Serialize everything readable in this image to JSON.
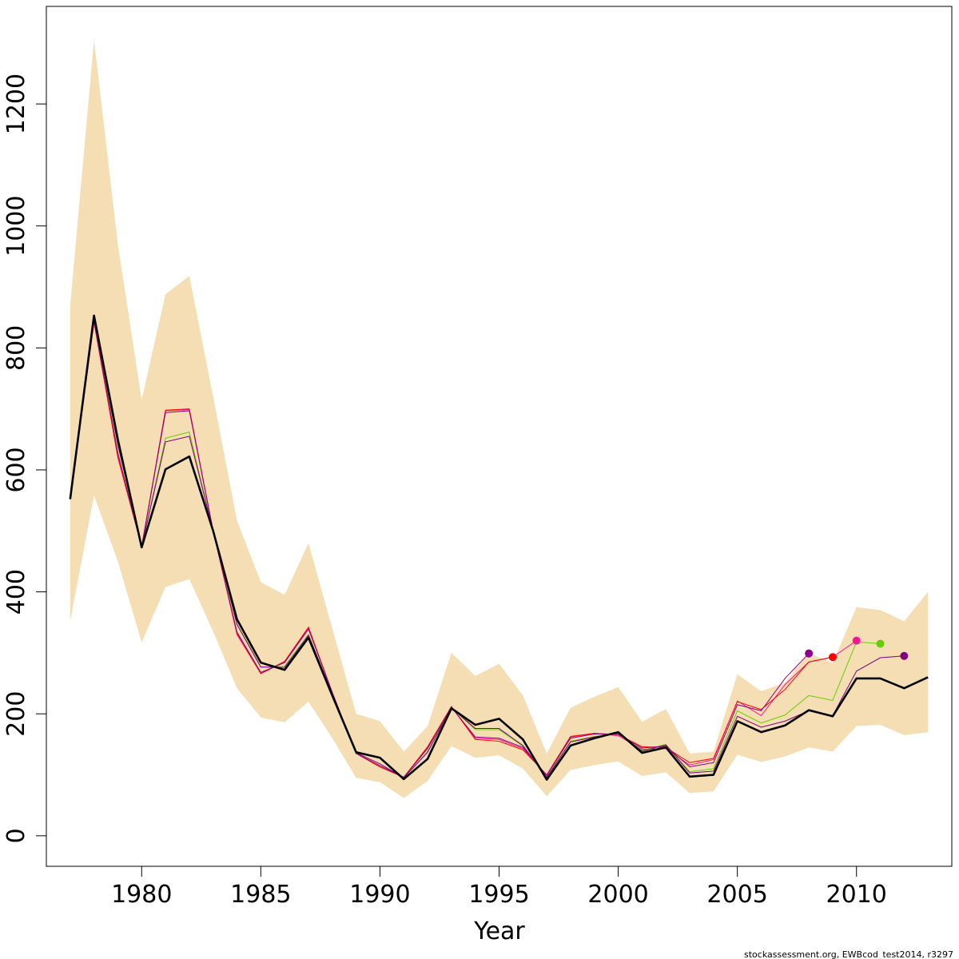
{
  "chart_data": {
    "type": "line",
    "xlabel": "Year",
    "ylabel": "",
    "xlim": [
      1976,
      2014
    ],
    "ylim": [
      -50,
      1360
    ],
    "x_ticks": [
      "1980",
      "1985",
      "1990",
      "1995",
      "2000",
      "2005",
      "2010"
    ],
    "y_ticks": [
      "0",
      "200",
      "400",
      "600",
      "800",
      "1000",
      "1200"
    ],
    "grid": false,
    "legend": "none",
    "footer": "stockassessment.org, EWBcod_test2014, r3297",
    "colors": {
      "band": "#f5deb3",
      "main": "#000000",
      "r1": "#ff1493",
      "r2": "#ff0000",
      "r3": "#66cd00",
      "r4": "#800080",
      "r5": "#8b008b"
    },
    "x": [
      1977,
      1978,
      1979,
      1980,
      1981,
      1982,
      1983,
      1984,
      1985,
      1986,
      1987,
      1988,
      1989,
      1990,
      1991,
      1992,
      1993,
      1994,
      1995,
      1996,
      1997,
      1998,
      1999,
      2000,
      2001,
      2002,
      2003,
      2004,
      2005,
      2006,
      2007,
      2008,
      2009,
      2010,
      2011,
      2012,
      2013
    ],
    "band_upper": [
      870,
      1305,
      970,
      715,
      888,
      918,
      720,
      517,
      416,
      395,
      480,
      340,
      200,
      188,
      138,
      180,
      300,
      262,
      282,
      230,
      135,
      210,
      228,
      244,
      187,
      208,
      135,
      138,
      265,
      237,
      251,
      300,
      283,
      375,
      370,
      352,
      400
    ],
    "band_lower": [
      352,
      558,
      450,
      317,
      408,
      421,
      335,
      242,
      194,
      186,
      220,
      160,
      95,
      88,
      62,
      90,
      147,
      128,
      132,
      110,
      65,
      108,
      116,
      122,
      98,
      104,
      70,
      73,
      133,
      121,
      130,
      145,
      138,
      180,
      182,
      165,
      170
    ],
    "main": [
      552,
      853,
      650,
      473,
      601,
      622,
      500,
      355,
      284,
      272,
      325,
      230,
      137,
      128,
      93,
      126,
      209,
      182,
      192,
      158,
      92,
      148,
      160,
      170,
      136,
      145,
      97,
      100,
      188,
      170,
      181,
      206,
      196,
      258,
      258,
      242,
      260
    ],
    "series": [
      {
        "x": [
          1977,
          1978,
          1979,
          1980,
          1981,
          1982,
          1983,
          1984,
          1985,
          1986,
          1987,
          1988,
          1989,
          1990,
          1991,
          1992,
          1993,
          1994,
          1995,
          1996,
          1997,
          1998,
          1999,
          2000,
          2001,
          2002,
          2003,
          2004,
          2005,
          2006,
          2007,
          2008,
          2009,
          2010
        ],
        "values": [
          552,
          842,
          620,
          474,
          697,
          699,
          500,
          330,
          266,
          285,
          341,
          235,
          135,
          113,
          96,
          145,
          211,
          160,
          158,
          143,
          99,
          162,
          168,
          164,
          142,
          143,
          116,
          125,
          221,
          197,
          248,
          285,
          293,
          320
        ],
        "end_point": 320,
        "color_key": "r1"
      },
      {
        "x": [
          1977,
          1978,
          1979,
          1980,
          1981,
          1982,
          1983,
          1984,
          1985,
          1986,
          1987,
          1988,
          1989,
          1990,
          1991,
          1992,
          1993,
          1994,
          1995,
          1996,
          1997,
          1998,
          1999,
          2000,
          2001,
          2002,
          2003,
          2004,
          2005,
          2006,
          2007,
          2008,
          2009
        ],
        "values": [
          552,
          843,
          622,
          474,
          698,
          700,
          500,
          332,
          266,
          286,
          342,
          235,
          135,
          113,
          96,
          146,
          212,
          158,
          155,
          141,
          100,
          163,
          168,
          166,
          146,
          145,
          120,
          127,
          220,
          207,
          240,
          285,
          293
        ],
        "end_point": 293,
        "color_key": "r2"
      },
      {
        "x": [
          1977,
          1978,
          1979,
          1980,
          1981,
          1982,
          1983,
          1984,
          1985,
          1986,
          1987,
          1988,
          1989,
          1990,
          1991,
          1992,
          1993,
          1994,
          1995,
          1996,
          1997,
          1998,
          1999,
          2000,
          2001,
          2002,
          2003,
          2004,
          2005,
          2006,
          2007,
          2008,
          2009,
          2010,
          2011
        ],
        "values": [
          552,
          847,
          640,
          474,
          652,
          662,
          500,
          346,
          276,
          278,
          330,
          233,
          136,
          118,
          95,
          138,
          210,
          174,
          174,
          147,
          96,
          155,
          163,
          168,
          140,
          150,
          105,
          110,
          205,
          185,
          198,
          230,
          222,
          318,
          315
        ],
        "end_point": 315,
        "color_key": "r3"
      },
      {
        "x": [
          1977,
          1978,
          1979,
          1980,
          1981,
          1982,
          1983,
          1984,
          1985,
          1986,
          1987,
          1988,
          1989,
          1990,
          1991,
          1992,
          1993,
          1994,
          1995,
          1996,
          1997,
          1998,
          1999,
          2000,
          2001,
          2002,
          2003,
          2004,
          2005,
          2006,
          2007,
          2008,
          2009,
          2010,
          2011,
          2012
        ],
        "values": [
          552,
          848,
          642,
          474,
          646,
          655,
          500,
          347,
          277,
          276,
          329,
          233,
          136,
          118,
          95,
          137,
          210,
          176,
          176,
          148,
          96,
          154,
          162,
          168,
          139,
          149,
          103,
          106,
          196,
          178,
          188,
          205,
          197,
          270,
          292,
          295
        ],
        "end_point": 295,
        "color_key": "r4"
      },
      {
        "x": [
          1977,
          1978,
          1979,
          1980,
          1981,
          1982,
          1983,
          1984,
          1985,
          1986,
          1987,
          1988,
          1989,
          1990,
          1991,
          1992,
          1993,
          1994,
          1995,
          1996,
          1997,
          1998,
          1999,
          2000,
          2001,
          2002,
          2003,
          2004,
          2005,
          2006,
          2007,
          2008
        ],
        "values": [
          552,
          844,
          628,
          474,
          694,
          697,
          500,
          334,
          268,
          284,
          339,
          235,
          135,
          115,
          96,
          143,
          211,
          162,
          160,
          145,
          99,
          160,
          167,
          166,
          144,
          147,
          113,
          120,
          215,
          205,
          258,
          299
        ],
        "end_point": 299,
        "color_key": "r5"
      }
    ]
  }
}
